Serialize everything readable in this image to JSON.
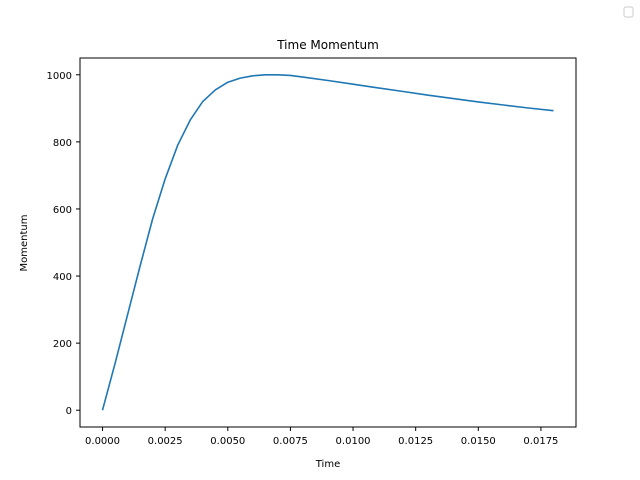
{
  "chart_data": {
    "type": "line",
    "title": "Time Momentum",
    "xlabel": "Time",
    "ylabel": "Momentum",
    "xlim": [
      -0.0009,
      0.0189
    ],
    "ylim": [
      -50,
      1050
    ],
    "xticks": [
      0.0,
      0.0025,
      0.005,
      0.0075,
      0.01,
      0.0125,
      0.015,
      0.0175
    ],
    "xtick_labels": [
      "0.0000",
      "0.0025",
      "0.0050",
      "0.0075",
      "0.0100",
      "0.0125",
      "0.0150",
      "0.0175"
    ],
    "yticks": [
      0,
      200,
      400,
      600,
      800,
      1000
    ],
    "ytick_labels": [
      "0",
      "200",
      "400",
      "600",
      "800",
      "1000"
    ],
    "grid": false,
    "legend": {
      "placement": "top-right",
      "entries": []
    },
    "series": [
      {
        "color": "#1f77b4",
        "x": [
          0.0,
          0.0005,
          0.001,
          0.0015,
          0.002,
          0.0025,
          0.003,
          0.0035,
          0.004,
          0.0045,
          0.005,
          0.0055,
          0.006,
          0.0065,
          0.007,
          0.0075,
          0.008,
          0.009,
          0.01,
          0.011,
          0.012,
          0.013,
          0.014,
          0.015,
          0.016,
          0.017,
          0.018
        ],
        "y": [
          0,
          140,
          285,
          430,
          570,
          690,
          790,
          865,
          920,
          955,
          978,
          990,
          997,
          1000,
          1000,
          998,
          993,
          983,
          972,
          961,
          950,
          939,
          929,
          919,
          910,
          901,
          893
        ]
      }
    ]
  }
}
